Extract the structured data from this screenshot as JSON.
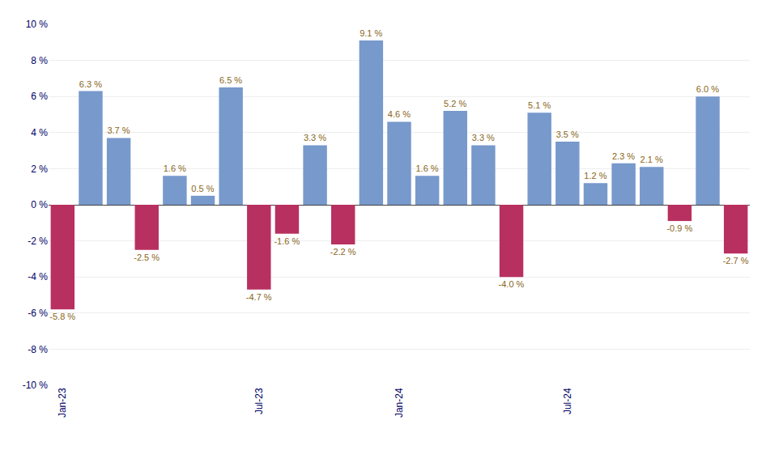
{
  "chart_data": {
    "type": "bar",
    "categories": [
      "Jan-23",
      null,
      null,
      null,
      null,
      null,
      null,
      "Jul-23",
      null,
      null,
      null,
      null,
      "Jan-24",
      null,
      null,
      null,
      null,
      null,
      "Jul-24",
      null,
      null,
      null,
      null,
      null,
      null
    ],
    "values": [
      -5.8,
      6.3,
      3.7,
      -2.5,
      1.6,
      0.5,
      6.5,
      -4.7,
      -1.6,
      3.3,
      -2.2,
      9.1,
      4.6,
      1.6,
      5.2,
      3.3,
      -4.0,
      5.1,
      3.5,
      1.2,
      2.3,
      2.1,
      -0.9,
      6.0,
      -2.7
    ],
    "value_labels": [
      "-5.8 %",
      "6.3 %",
      "3.7 %",
      "-2.5 %",
      "1.6 %",
      "0.5 %",
      "6.5 %",
      "-4.7 %",
      "-1.6 %",
      "3.3 %",
      "-2.2 %",
      "9.1 %",
      "4.6 %",
      "1.6 %",
      "5.2 %",
      "3.3 %",
      "-4.0 %",
      "5.1 %",
      "3.5 %",
      "1.2 %",
      "2.3 %",
      "2.1 %",
      "-0.9 %",
      "6.0 %",
      "-2.7 %"
    ],
    "colors": [
      "#B83060",
      "#7799CC",
      "#7799CC",
      "#B83060",
      "#7799CC",
      "#7799CC",
      "#7799CC",
      "#B83060",
      "#B83060",
      "#7799CC",
      "#B83060",
      "#7799CC",
      "#7799CC",
      "#7799CC",
      "#7799CC",
      "#7799CC",
      "#B83060",
      "#7799CC",
      "#7799CC",
      "#7799CC",
      "#7799CC",
      "#7799CC",
      "#B83060",
      "#7799CC",
      "#B83060"
    ],
    "ylim": [
      -10,
      10
    ],
    "yticks": [
      {
        "value": -10,
        "label": "-10 %"
      },
      {
        "value": -8,
        "label": "-8 %"
      },
      {
        "value": -6,
        "label": "-6 %"
      },
      {
        "value": -4,
        "label": "-4 %"
      },
      {
        "value": -2,
        "label": "-2 %"
      },
      {
        "value": 0,
        "label": "0 %"
      },
      {
        "value": 2,
        "label": "2 %"
      },
      {
        "value": 4,
        "label": "4 %"
      },
      {
        "value": 6,
        "label": "6 %"
      },
      {
        "value": 8,
        "label": "8 %"
      },
      {
        "value": 10,
        "label": "10 %"
      }
    ],
    "grid": true,
    "data_labels": true
  }
}
